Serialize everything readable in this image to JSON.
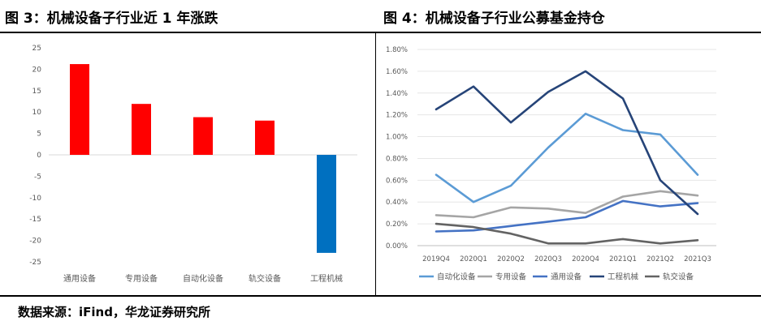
{
  "figures": {
    "left_title": "图 3：机械设备子行业近 1 年涨跌",
    "right_title": "图 4：机械设备子行业公募基金持仓",
    "source": "数据来源：iFind，华龙证券研究所"
  },
  "chart_data": [
    {
      "type": "bar",
      "title": "",
      "categories": [
        "通用设备",
        "专用设备",
        "自动化设备",
        "轨交设备",
        "工程机械"
      ],
      "values": [
        21.2,
        11.9,
        8.8,
        8.0,
        -22.9
      ],
      "colors": [
        "#ff0000",
        "#ff0000",
        "#ff0000",
        "#ff0000",
        "#0070c0"
      ],
      "ylim": [
        -25,
        25
      ],
      "yticks": [
        25,
        20,
        15,
        10,
        5,
        0,
        -5,
        -10,
        -15,
        -20,
        -25
      ],
      "grid": false,
      "xlabel": "",
      "ylabel": ""
    },
    {
      "type": "line",
      "title": "",
      "categories": [
        "2019Q4",
        "2020Q1",
        "2020Q2",
        "2020Q3",
        "2020Q4",
        "2021Q1",
        "2021Q2",
        "2021Q3"
      ],
      "ylim": [
        0,
        1.8
      ],
      "yticks": [
        "0.00%",
        "0.20%",
        "0.40%",
        "0.60%",
        "0.80%",
        "1.00%",
        "1.20%",
        "1.40%",
        "1.60%",
        "1.80%"
      ],
      "grid": true,
      "legend_position": "bottom",
      "series": [
        {
          "name": "自动化设备",
          "color": "#5b9bd5",
          "values": [
            0.65,
            0.4,
            0.55,
            0.9,
            1.21,
            1.06,
            1.02,
            0.65
          ]
        },
        {
          "name": "专用设备",
          "color": "#a5a5a5",
          "values": [
            0.28,
            0.26,
            0.35,
            0.34,
            0.3,
            0.45,
            0.5,
            0.46
          ]
        },
        {
          "name": "通用设备",
          "color": "#4472c4",
          "values": [
            0.13,
            0.14,
            0.18,
            0.22,
            0.26,
            0.41,
            0.36,
            0.39
          ]
        },
        {
          "name": "工程机械",
          "color": "#264478",
          "values": [
            1.25,
            1.46,
            1.13,
            1.41,
            1.6,
            1.35,
            0.6,
            0.29
          ]
        },
        {
          "name": "轨交设备",
          "color": "#636363",
          "values": [
            0.2,
            0.17,
            0.11,
            0.02,
            0.02,
            0.06,
            0.02,
            0.05
          ]
        }
      ]
    }
  ]
}
